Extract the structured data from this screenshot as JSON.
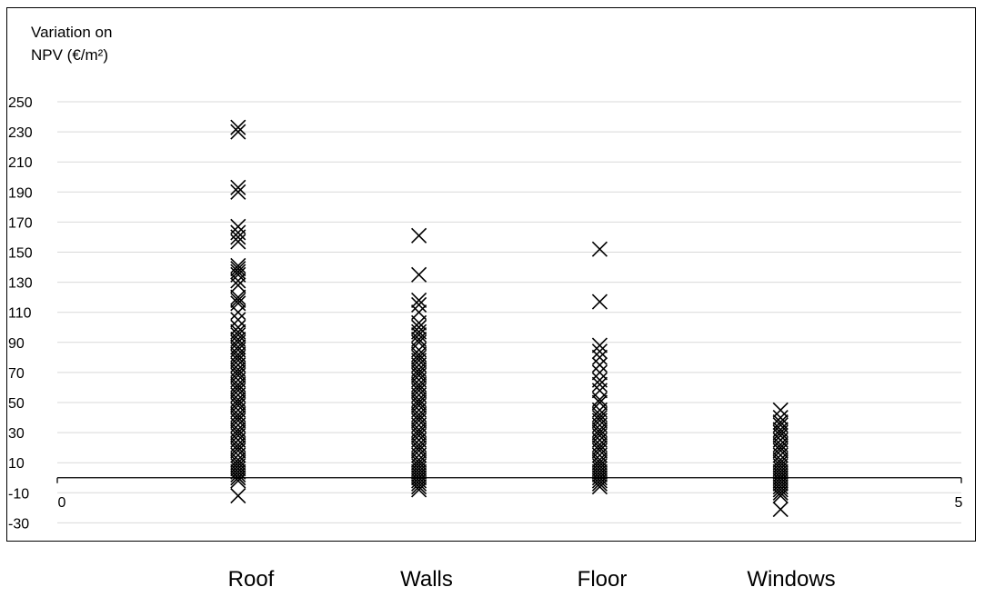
{
  "chart_data": {
    "type": "scatter",
    "ylabel_lines": [
      "Variation on",
      "NPV (€/m²)"
    ],
    "xlabel": "",
    "ylim": [
      -30,
      250
    ],
    "y_tick_step": 20,
    "y_ticks": [
      "250",
      "230",
      "210",
      "190",
      "170",
      "150",
      "130",
      "110",
      "90",
      "70",
      "50",
      "30",
      "10",
      "-10",
      "-30"
    ],
    "xlim": [
      0,
      5
    ],
    "x_ticks": [
      "0",
      "5"
    ],
    "grid": true,
    "marker": "x",
    "marker_color": "#000000",
    "categories": [
      "Roof",
      "Walls",
      "Floor",
      "Windows"
    ],
    "series": [
      {
        "x": 1,
        "values": [
          233,
          230,
          193,
          190,
          167,
          163,
          160,
          157,
          141,
          139,
          137,
          135,
          131,
          128,
          120,
          118,
          116,
          110,
          105,
          100,
          97,
          95,
          92,
          90,
          87,
          85,
          82,
          80,
          78,
          75,
          72,
          70,
          68,
          65,
          62,
          60,
          58,
          55,
          52,
          50,
          48,
          45,
          42,
          40,
          38,
          35,
          32,
          30,
          28,
          25,
          22,
          20,
          18,
          15,
          12,
          10,
          8,
          6,
          4,
          2,
          0,
          -2,
          -12
        ]
      },
      {
        "x": 2,
        "values": [
          161,
          135,
          118,
          115,
          110,
          103,
          100,
          97,
          95,
          92,
          90,
          85,
          82,
          80,
          78,
          75,
          72,
          70,
          68,
          65,
          62,
          60,
          58,
          55,
          52,
          50,
          48,
          45,
          42,
          40,
          38,
          35,
          32,
          30,
          28,
          25,
          22,
          20,
          18,
          15,
          12,
          10,
          8,
          6,
          4,
          2,
          0,
          -2,
          -4,
          -6,
          -8
        ]
      },
      {
        "x": 3,
        "values": [
          152,
          117,
          88,
          84,
          80,
          75,
          70,
          65,
          62,
          58,
          52,
          50,
          45,
          42,
          40,
          38,
          35,
          32,
          30,
          28,
          25,
          22,
          20,
          18,
          15,
          12,
          10,
          8,
          6,
          4,
          2,
          0,
          -2,
          -4,
          -6
        ]
      },
      {
        "x": 4,
        "values": [
          45,
          40,
          37,
          35,
          32,
          30,
          28,
          25,
          22,
          20,
          18,
          15,
          12,
          10,
          8,
          6,
          4,
          2,
          0,
          -2,
          -4,
          -6,
          -8,
          -10,
          -12,
          -21
        ]
      }
    ]
  }
}
